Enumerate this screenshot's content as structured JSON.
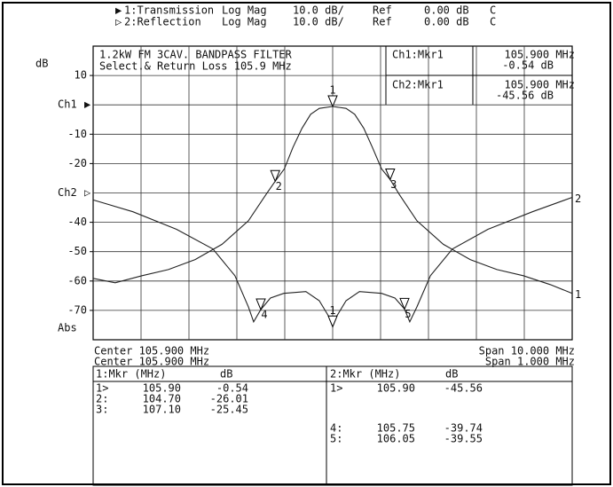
{
  "chart_data": {
    "type": "line",
    "ylabel": "dB",
    "title_lines": [
      "1.2kW FM 3CAV. BANDPASS FILTER",
      "Select.& Return Loss 105.9 MHz"
    ],
    "xlim": [
      100.9,
      110.9
    ],
    "x2lim": [
      105.4,
      106.4
    ],
    "ylim": [
      -80,
      20
    ],
    "y2lim": [
      -50,
      50
    ],
    "yticks": [
      10,
      -10,
      -20,
      -40,
      -50,
      -60,
      -70
    ],
    "bottom_label": "Abs",
    "grid": true,
    "series": [
      {
        "name": "1:Transmission",
        "ref_label": "Ch1",
        "status": [
          "Log Mag",
          "10.0 dB/",
          "Ref",
          "0.00 dB",
          "C"
        ],
        "trace_label": "1",
        "color": "#222222",
        "x": [
          100.9,
          101.36,
          101.92,
          102.47,
          103.03,
          103.59,
          104.14,
          104.51,
          104.7,
          104.89,
          105.07,
          105.26,
          105.44,
          105.62,
          105.9,
          106.18,
          106.36,
          106.55,
          106.73,
          106.92,
          107.1,
          107.29,
          107.66,
          108.21,
          108.77,
          109.33,
          109.88,
          110.44,
          110.9
        ],
        "values": [
          -59.1,
          -60.6,
          -58.2,
          -56.1,
          -52.7,
          -47.5,
          -39.5,
          -30.5,
          -26.01,
          -21.8,
          -14.5,
          -8,
          -3.2,
          -1.2,
          -0.54,
          -1.2,
          -3.2,
          -8,
          -14.5,
          -21.8,
          -25.45,
          -30.5,
          -39.5,
          -47.5,
          -52.7,
          -56.1,
          -58.2,
          -61.2,
          -64.2
        ],
        "readout": [
          "Ch1:Mkr1",
          "105.900 MHz",
          "-0.54 dB"
        ],
        "center_text": "Center 105.900 MHz",
        "span_text": "Span 10.000 MHz",
        "table_header": [
          "1:Mkr (MHz)",
          "dB"
        ],
        "markers": {
          "labels": [
            "1",
            "2",
            "3"
          ],
          "row_labels": [
            "1>",
            "2:",
            "3:"
          ],
          "x": [
            105.9,
            104.7,
            107.1
          ],
          "x_labels": [
            "105.90",
            "104.70",
            "107.10"
          ],
          "values": [
            -0.54,
            -26.01,
            -25.45
          ]
        }
      },
      {
        "name": "2:Reflection",
        "ref_label": "Ch2",
        "status": [
          "Log Mag",
          "10.0 dB/",
          "Ref",
          "0.00 dB",
          "C"
        ],
        "trace_label": "2",
        "color": "#222222",
        "axis": "y2",
        "x": [
          105.4,
          105.483,
          105.574,
          105.65,
          105.696,
          105.724,
          105.735,
          105.75,
          105.77,
          105.798,
          105.844,
          105.872,
          105.891,
          105.9,
          105.909,
          105.928,
          105.956,
          106.002,
          106.03,
          106.05,
          106.061,
          106.076,
          106.104,
          106.15,
          106.224,
          106.317,
          106.4
        ],
        "values": [
          -2.4,
          -6.4,
          -12.4,
          -19.1,
          -28.2,
          -38.8,
          -43.9,
          -39.74,
          -35.8,
          -34.2,
          -33.6,
          -36.7,
          -41.8,
          -45.56,
          -41.8,
          -36.7,
          -33.6,
          -34.2,
          -35.8,
          -39.55,
          -43.9,
          -38.8,
          -28.2,
          -19.1,
          -12.4,
          -6.4,
          -1.5
        ],
        "readout": [
          "Ch2:Mkr1",
          "105.900 MHz",
          "-45.56 dB"
        ],
        "center_text": "Center 105.900 MHz",
        "span_text": "Span 1.000 MHz",
        "table_header": [
          "2:Mkr (MHz)",
          "dB"
        ],
        "markers": {
          "labels": [
            "1",
            "4",
            "5"
          ],
          "row_labels": [
            "1>",
            "4:",
            "5:"
          ],
          "x": [
            105.9,
            105.75,
            106.05
          ],
          "x_labels": [
            "105.90",
            "105.75",
            "106.05"
          ],
          "values": [
            -45.56,
            -39.74,
            -39.55
          ]
        }
      }
    ]
  }
}
